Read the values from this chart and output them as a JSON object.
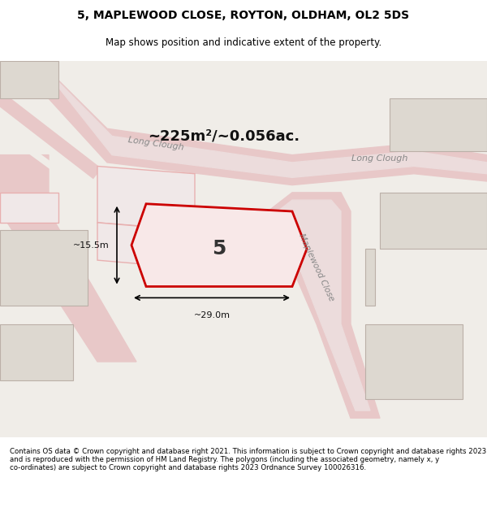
{
  "title": "5, MAPLEWOOD CLOSE, ROYTON, OLDHAM, OL2 5DS",
  "subtitle": "Map shows position and indicative extent of the property.",
  "footer": "Contains OS data © Crown copyright and database right 2021. This information is subject to Crown copyright and database rights 2023 and is reproduced with the permission of HM Land Registry. The polygons (including the associated geometry, namely x, y co-ordinates) are subject to Crown copyright and database rights 2023 Ordnance Survey 100026316.",
  "area_text": "~225m²/~0.056ac.",
  "width_label": "~29.0m",
  "height_label": "~15.5m",
  "property_number": "5",
  "bg_color": "#f5f5f5",
  "map_bg": "#f0ede8",
  "road_color": "#e8c8c8",
  "building_outline_color": "#c8a0a0",
  "highlight_color": "#cc0000",
  "highlight_fill": "#f5c0c0",
  "road_fill": "#e8d0d0",
  "street_label1": "Long Clough",
  "street_label2": "Long Clough",
  "street_label3": "Maplewood Close"
}
